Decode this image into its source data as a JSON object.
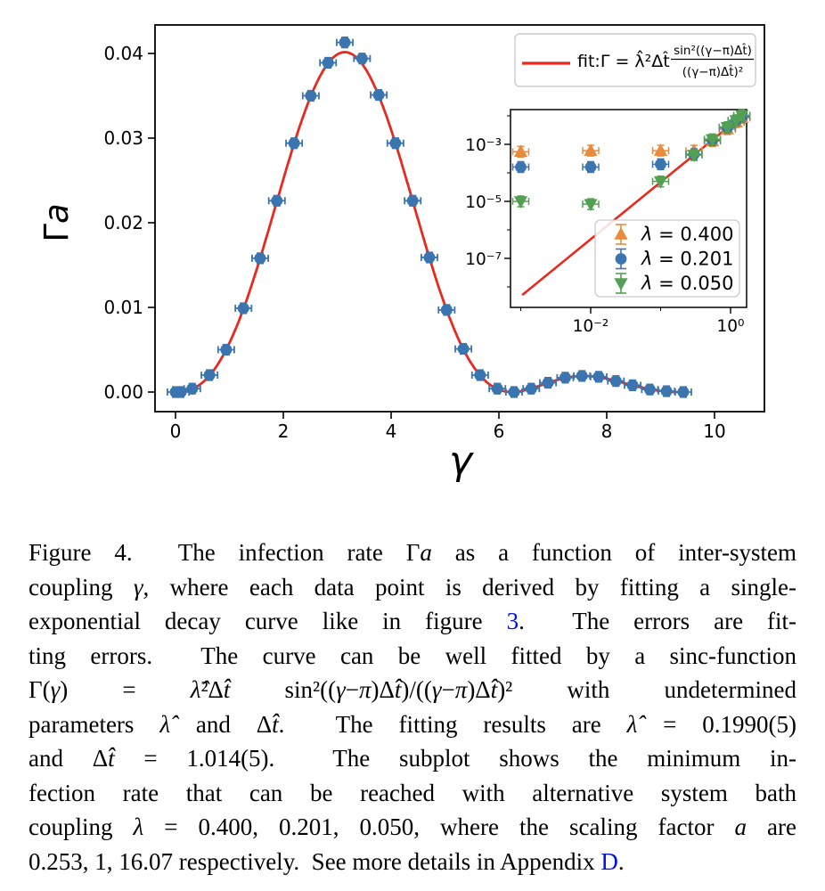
{
  "page": {
    "background": "#ffffff"
  },
  "figure": {
    "main_plot": {
      "xlabel": "γ",
      "ylabel_gamma": "Γ",
      "ylabel_a": "a",
      "xtick_labels": [
        "0",
        "2",
        "4",
        "6",
        "8",
        "10"
      ],
      "ytick_labels": [
        "0.00",
        "0.01",
        "0.02",
        "0.03",
        "0.04"
      ],
      "legend": {
        "label_prefix": "fit:Γ = λ̂²Δt̂",
        "fraction_numerator": "sin²((γ−π)Δt̂)",
        "fraction_denominator": "((γ−π)Δt̂)²",
        "line_color": "#e8291e"
      }
    },
    "inset_plot": {
      "xtick_labels": [
        "10⁻²",
        "10⁰"
      ],
      "ytick_labels": [
        "10⁻³",
        "10⁻⁵",
        "10⁻⁷"
      ],
      "legend_entries": [
        {
          "label": "λ = 0.400",
          "marker": "triangle-up",
          "color": "#e98a3d"
        },
        {
          "label": "λ = 0.201",
          "marker": "circle",
          "color": "#3b75af"
        },
        {
          "label": "λ = 0.050",
          "marker": "triangle-down",
          "color": "#53a053"
        }
      ]
    }
  },
  "chart_data": [
    {
      "id": "main",
      "type": "scatter",
      "xlabel": "γ",
      "ylabel": "Γa",
      "xlim": [
        -0.4,
        10.9
      ],
      "ylim": [
        -0.0022,
        0.0434
      ],
      "xticks": [
        0,
        2,
        4,
        6,
        8,
        10
      ],
      "yticks": [
        0,
        0.01,
        0.02,
        0.03,
        0.04
      ],
      "grid": false,
      "legend_position": "upper right",
      "series": [
        {
          "name": "data",
          "marker": "circle",
          "color": "#3b75af",
          "xerr": 0.15,
          "yerr": 0.0006,
          "x": [
            0.0,
            0.1,
            0.31,
            0.63,
            0.94,
            1.26,
            1.57,
            1.88,
            2.2,
            2.51,
            2.83,
            3.14,
            3.46,
            3.77,
            4.08,
            4.4,
            4.71,
            5.03,
            5.34,
            5.65,
            5.97,
            6.28,
            6.6,
            6.91,
            7.23,
            7.54,
            7.85,
            8.17,
            8.48,
            8.8,
            9.11,
            9.42
          ],
          "y": [
            0.0,
            0.0,
            0.0004,
            0.002,
            0.005,
            0.0099,
            0.0158,
            0.0226,
            0.0294,
            0.035,
            0.0389,
            0.0413,
            0.0394,
            0.0351,
            0.0294,
            0.0226,
            0.0159,
            0.0097,
            0.0051,
            0.002,
            0.0004,
            0.0,
            0.0004,
            0.0011,
            0.0017,
            0.0019,
            0.0018,
            0.0013,
            0.0008,
            0.0003,
            0.0001,
            0.0
          ]
        }
      ],
      "fit_curve": {
        "label": "fit:Γ = λ̂²Δt̂ sin²((γ−π)Δt̂)/((γ−π)Δt̂)²",
        "lambda_hat": 0.199,
        "dt_hat": 1.014,
        "peak_gamma": 3.1416,
        "peak_value": 0.0402,
        "gamma_range": [
          -0.05,
          9.5
        ],
        "color": "#e8291e"
      }
    },
    {
      "id": "inset",
      "type": "scatter",
      "xscale": "log",
      "yscale": "log",
      "xlim": [
        0.0007,
        1.9
      ],
      "ylim": [
        2.2e-09,
        0.017
      ],
      "xticks": [
        0.01,
        1
      ],
      "yticks": [
        0.001,
        1e-05,
        1e-07
      ],
      "grid": false,
      "legend_position": "lower right",
      "series": [
        {
          "name": "λ = 0.400",
          "marker": "triangle-up",
          "color": "#e98a3d",
          "x": [
            0.001,
            0.01,
            0.1,
            0.3,
            0.55,
            0.9,
            1.2,
            1.45
          ],
          "y": [
            0.00055,
            0.0006,
            0.0006,
            0.0006,
            0.0013,
            0.0034,
            0.006,
            0.0085
          ]
        },
        {
          "name": "λ = 0.201",
          "marker": "circle",
          "color": "#3b75af",
          "x": [
            0.001,
            0.01,
            0.1,
            0.3,
            0.55,
            0.9,
            1.2,
            1.45
          ],
          "y": [
            0.00016,
            0.00016,
            0.0002,
            0.00045,
            0.0014,
            0.0038,
            0.0068,
            0.0095
          ]
        },
        {
          "name": "λ = 0.050",
          "marker": "triangle-down",
          "color": "#53a053",
          "x": [
            0.001,
            0.01,
            0.1,
            0.3,
            0.55,
            0.9,
            1.2,
            1.45
          ],
          "y": [
            1e-05,
            8e-06,
            5e-05,
            0.00042,
            0.0015,
            0.004,
            0.007,
            0.0105
          ]
        }
      ],
      "fit_line": {
        "relation": "y = 0.0047·x²",
        "coef": 0.0047,
        "power": 2,
        "x_range": [
          0.00105,
          1.5
        ],
        "color": "#e8291e"
      }
    }
  ],
  "caption": {
    "lines": [
      [
        {
          "t": "Figure 4.  The infection rate Γ"
        },
        {
          "t": "a",
          "s": "i"
        },
        {
          "t": " as a function of inter-system"
        }
      ],
      [
        {
          "t": "coupling "
        },
        {
          "t": "γ",
          "s": "i"
        },
        {
          "t": ", where each data point is derived by fitting a single-"
        }
      ],
      [
        {
          "t": "exponential decay curve like in figure "
        },
        {
          "t": "3",
          "s": "link"
        },
        {
          "t": ".  The errors are fit-"
        }
      ],
      [
        {
          "t": "ting errors.  The curve can be well fitted by a sinc-function"
        }
      ],
      [
        {
          "t": "Γ("
        },
        {
          "t": "γ",
          "s": "i"
        },
        {
          "t": ") = "
        },
        {
          "t": "λ̂",
          "s": "i"
        },
        {
          "t": "²Δ"
        },
        {
          "t": "t̂",
          "s": "i"
        },
        {
          "t": " sin²(("
        },
        {
          "t": "γ",
          "s": "i"
        },
        {
          "t": "−"
        },
        {
          "t": "π",
          "s": "i"
        },
        {
          "t": ")Δ"
        },
        {
          "t": "t̂",
          "s": "i"
        },
        {
          "t": ")/(("
        },
        {
          "t": "γ",
          "s": "i"
        },
        {
          "t": "−"
        },
        {
          "t": "π",
          "s": "i"
        },
        {
          "t": ")Δ"
        },
        {
          "t": "t̂",
          "s": "i"
        },
        {
          "t": ")² with undetermined"
        }
      ],
      [
        {
          "t": "parameters "
        },
        {
          "t": "λ̂",
          "s": "i"
        },
        {
          "t": " and Δ"
        },
        {
          "t": "t̂",
          "s": "i"
        },
        {
          "t": ".  The fitting results are "
        },
        {
          "t": "λ̂",
          "s": "i"
        },
        {
          "t": " = 0.1990(5)"
        }
      ],
      [
        {
          "t": "and Δ"
        },
        {
          "t": "t̂",
          "s": "i"
        },
        {
          "t": " = 1.014(5).  The subplot shows the minimum in-"
        }
      ],
      [
        {
          "t": "fection rate that can be reached with alternative system bath"
        }
      ],
      [
        {
          "t": "coupling "
        },
        {
          "t": "λ",
          "s": "i"
        },
        {
          "t": " = 0.400, 0.201, 0.050, where the scaling factor "
        },
        {
          "t": "a",
          "s": "i"
        },
        {
          "t": " are"
        }
      ],
      [
        {
          "t": "0.253, 1, 16.07 respectively.  See more details in Appendix "
        },
        {
          "t": "D",
          "s": "link"
        },
        {
          "t": "."
        }
      ]
    ]
  }
}
